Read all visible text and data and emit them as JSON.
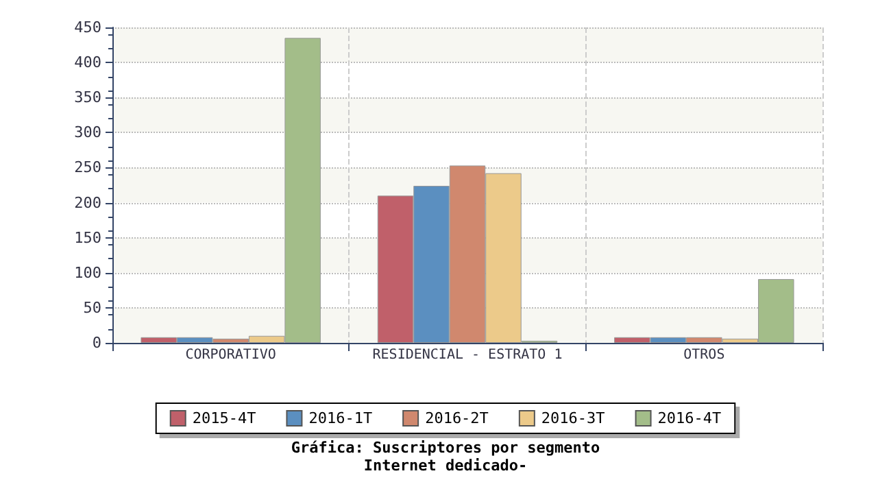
{
  "chart_data": {
    "type": "bar",
    "title": "Gráfica: Suscriptores por segmento",
    "subtitle": "Internet dedicado-",
    "categories": [
      "CORPORATIVO",
      "RESIDENCIAL - ESTRATO 1",
      "OTROS"
    ],
    "series": [
      {
        "name": "2015-4T",
        "color": "#c0606a",
        "values": [
          8,
          210,
          8
        ]
      },
      {
        "name": "2016-1T",
        "color": "#5b8fc0",
        "values": [
          8,
          224,
          8
        ]
      },
      {
        "name": "2016-2T",
        "color": "#d0886e",
        "values": [
          6,
          253,
          8
        ]
      },
      {
        "name": "2016-3T",
        "color": "#ecca8a",
        "values": [
          10,
          242,
          6
        ]
      },
      {
        "name": "2016-4T",
        "color": "#a3bd89",
        "values": [
          435,
          3,
          91
        ]
      }
    ],
    "ylim": [
      0,
      450
    ],
    "yticks": [
      0,
      50,
      100,
      150,
      200,
      250,
      300,
      350,
      400,
      450
    ],
    "grid": true,
    "legend": "bottom"
  }
}
